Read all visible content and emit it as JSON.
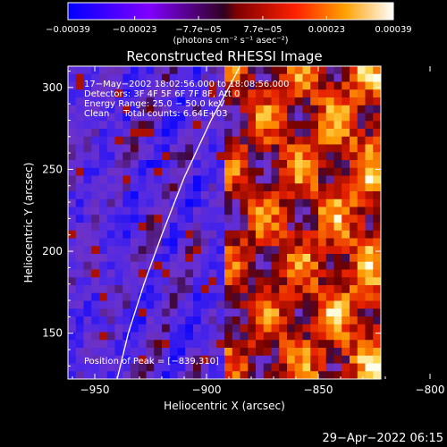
{
  "chart_data": {
    "type": "heatmap",
    "title": "Reconstructed RHESSI Image",
    "xlabel": "Heliocentric X (arcsec)",
    "ylabel": "Heliocentric Y (arcsec)",
    "xlim": [
      -962,
      -822
    ],
    "ylim": [
      122,
      313
    ],
    "x_ticks": [
      -950,
      -900,
      -850,
      -800
    ],
    "y_ticks": [
      150,
      200,
      250,
      300
    ],
    "x_tick_labels": [
      "−950",
      "−900",
      "−850",
      "−800"
    ],
    "y_tick_labels": [
      "150",
      "200",
      "250",
      "300"
    ],
    "colorbar": {
      "range": [
        -0.00039,
        0.00039
      ],
      "ticks": [
        -0.00039,
        -0.00023,
        -7.7e-05,
        7.7e-05,
        0.00023,
        0.00039
      ],
      "tick_labels": [
        "−0.00039",
        "−0.00023",
        "−7.7e−05",
        "7.7e−05",
        "0.00023",
        "0.00039"
      ],
      "colors": [
        "#0000ff",
        "#8000ff",
        "#800000",
        "#ff0000",
        "#ffa000",
        "#ffffff"
      ],
      "unit_label": "(photons cm⁻² s⁻¹ asec⁻²)"
    },
    "annotations": [
      "17−May−2002 18:02:56.000 to 18:08:56.000",
      "Detectors: 3F 4F 5F 6F 7F 8F, Att 0",
      "Energy Range: 25.0 − 50.0 keV",
      "Clean     Total counts: 6.64E+03"
    ],
    "peak_label": "Position of Peak = [−839,310]",
    "peak_position": [
      -839,
      310
    ],
    "solar_limb": [
      [
        -940,
        122
      ],
      [
        -935,
        150
      ],
      [
        -928,
        180
      ],
      [
        -920,
        210
      ],
      [
        -910,
        245
      ],
      [
        -898,
        280
      ],
      [
        -890,
        300
      ],
      [
        -885,
        313
      ]
    ],
    "pattern_note_excluded": true,
    "timestamp": "29−Apr−2022 06:15"
  }
}
